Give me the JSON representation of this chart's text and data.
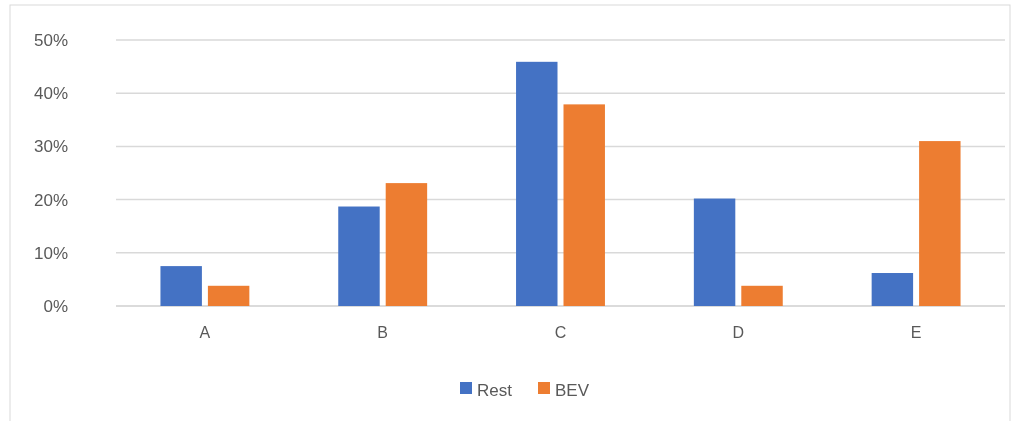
{
  "chart_data": {
    "type": "bar",
    "categories": [
      "A",
      "B",
      "C",
      "D",
      "E"
    ],
    "series": [
      {
        "name": "Rest",
        "color": "#4472c4",
        "values": [
          7.5,
          18.7,
          45.9,
          20.2,
          6.2
        ]
      },
      {
        "name": "BEV",
        "color": "#ed7d31",
        "values": [
          3.8,
          23.1,
          37.9,
          3.8,
          31.0
        ]
      }
    ],
    "ylim": [
      0,
      50
    ],
    "yticks": [
      {
        "value": 0,
        "label": "0%"
      },
      {
        "value": 10,
        "label": "10%"
      },
      {
        "value": 20,
        "label": "20%"
      },
      {
        "value": 30,
        "label": "30%"
      },
      {
        "value": 40,
        "label": "40%"
      },
      {
        "value": 50,
        "label": "50%"
      }
    ],
    "grid": "y",
    "legend": "bottom"
  }
}
